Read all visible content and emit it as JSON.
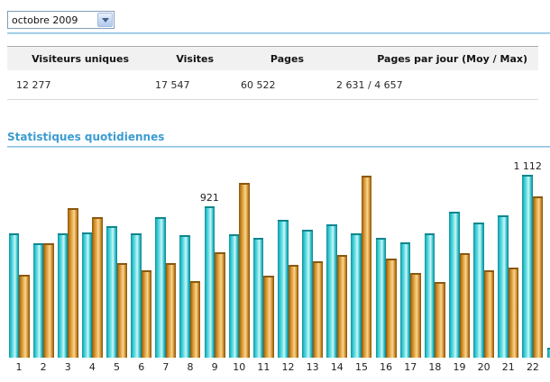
{
  "toolbar": {
    "month_selector": {
      "value": "octobre 2009"
    }
  },
  "summary_table": {
    "columns": [
      "Visiteurs uniques",
      "Visites",
      "Pages",
      "Pages par jour (Moy / Max)"
    ],
    "values": [
      "12 277",
      "17 547",
      "60 522",
      "2 631 / 4 657"
    ]
  },
  "section": {
    "title": "Statistiques quotidiennes"
  },
  "chart_data": {
    "type": "bar",
    "title": "Statistiques quotidiennes",
    "categories": [
      "1",
      "2",
      "3",
      "4",
      "5",
      "6",
      "7",
      "8",
      "9",
      "10",
      "11",
      "12",
      "13",
      "14",
      "15",
      "16",
      "17",
      "18",
      "19",
      "20",
      "21",
      "22"
    ],
    "series": [
      {
        "name": "cyan",
        "color": "#2EC6D0",
        "values": [
          760,
          700,
          760,
          765,
          800,
          755,
          855,
          745,
          921,
          750,
          730,
          840,
          780,
          815,
          760,
          730,
          705,
          755,
          890,
          825,
          865,
          1112
        ]
      },
      {
        "name": "orange",
        "color": "#D2912F",
        "values": [
          505,
          695,
          910,
          855,
          575,
          535,
          575,
          465,
          640,
          1065,
          500,
          565,
          590,
          625,
          1110,
          605,
          515,
          460,
          635,
          535,
          550,
          985
        ]
      }
    ],
    "annotations": [
      {
        "category": "9",
        "series": "cyan",
        "label": "921"
      },
      {
        "category": "22",
        "series": "cyan",
        "label": "1 112"
      }
    ],
    "partial_bar": {
      "category": "23",
      "series": "cyan",
      "value": 60
    },
    "ylim": [
      0,
      1150
    ],
    "xlabel": "",
    "ylabel": "",
    "grid": false,
    "legend": "none"
  }
}
